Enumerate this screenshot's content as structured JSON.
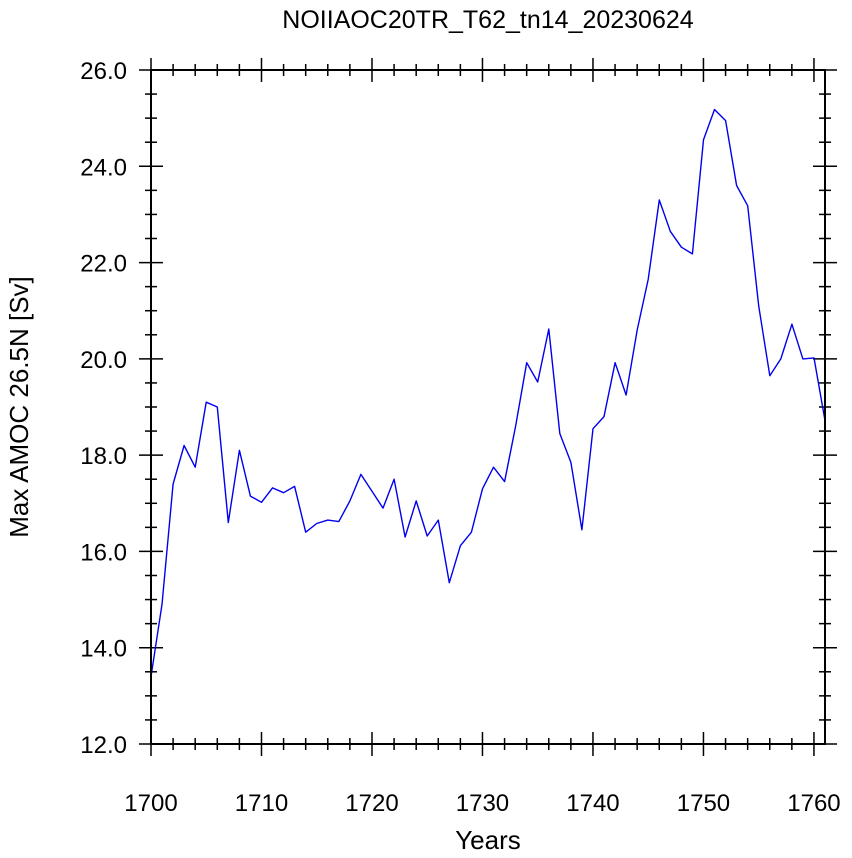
{
  "chart_data": {
    "type": "line",
    "title": "NOIIAOC20TR_T62_tn14_20230624",
    "xlabel": "Years",
    "ylabel": "Max AMOC 26.5N [Sv]",
    "xlim": [
      1700,
      1761
    ],
    "ylim": [
      12.0,
      26.0
    ],
    "x_ticks": [
      1700,
      1710,
      1720,
      1730,
      1740,
      1750,
      1760
    ],
    "x_tick_labels": [
      "1700",
      "1710",
      "1720",
      "1730",
      "1740",
      "1750",
      "1760"
    ],
    "x_minor_step": 2,
    "y_ticks": [
      12.0,
      14.0,
      16.0,
      18.0,
      20.0,
      22.0,
      24.0,
      26.0
    ],
    "y_tick_labels": [
      "12.0",
      "14.0",
      "16.0",
      "18.0",
      "20.0",
      "22.0",
      "24.0",
      "26.0"
    ],
    "y_minor_step": 0.5,
    "grid": false,
    "line_color": "#0000ee",
    "series": [
      {
        "x": [
          1700,
          1701,
          1702,
          1703,
          1704,
          1705,
          1706,
          1707,
          1708,
          1709,
          1710,
          1711,
          1712,
          1713,
          1714,
          1715,
          1716,
          1717,
          1718,
          1719,
          1720,
          1721,
          1722,
          1723,
          1724,
          1725,
          1726,
          1727,
          1728,
          1729,
          1730,
          1731,
          1732,
          1733,
          1734,
          1735,
          1736,
          1737,
          1738,
          1739,
          1740,
          1741,
          1742,
          1743,
          1744,
          1745,
          1746,
          1747,
          1748,
          1749,
          1750,
          1751,
          1752,
          1753,
          1754,
          1755,
          1756,
          1757,
          1758,
          1759,
          1760,
          1761
        ],
        "values": [
          13.4,
          14.9,
          17.4,
          18.2,
          17.75,
          19.1,
          19.0,
          16.6,
          18.1,
          17.15,
          17.02,
          17.32,
          17.22,
          17.35,
          16.4,
          16.58,
          16.65,
          16.62,
          17.05,
          17.6,
          17.25,
          16.9,
          17.5,
          16.3,
          17.05,
          16.32,
          16.65,
          15.35,
          16.12,
          16.4,
          17.3,
          17.75,
          17.45,
          18.6,
          19.92,
          19.52,
          20.62,
          18.45,
          17.85,
          16.45,
          18.55,
          18.8,
          19.92,
          19.25,
          20.6,
          21.65,
          23.3,
          22.65,
          22.32,
          22.18,
          24.55,
          25.18,
          24.95,
          23.6,
          23.18,
          21.1,
          19.65,
          20.0,
          20.72,
          20.0,
          20.02,
          18.72
        ]
      }
    ]
  }
}
